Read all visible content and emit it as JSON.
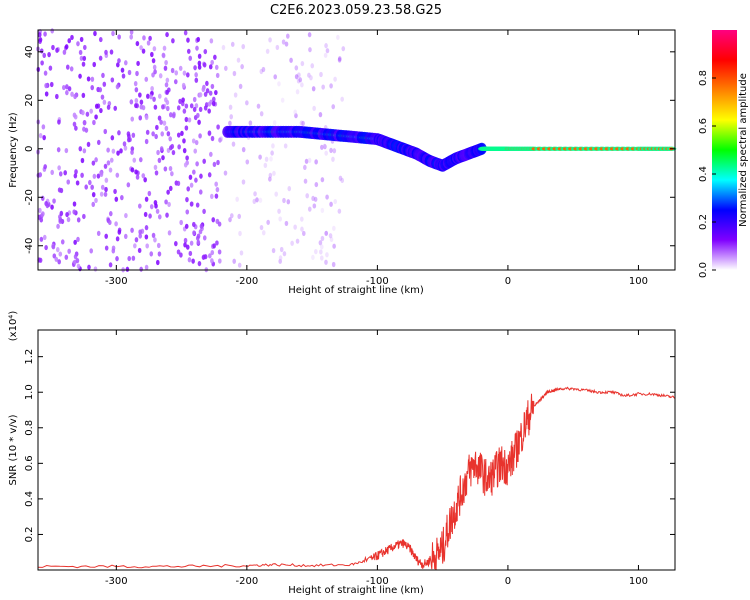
{
  "title": "C2E6.2023.059.23.58.G25",
  "chart_data": [
    {
      "type": "heatmap",
      "xlabel": "Height of straight line (km)",
      "ylabel": "Frequency (Hz)",
      "xlim": [
        -360,
        128
      ],
      "ylim": [
        -50,
        49
      ],
      "xticks": [
        -300,
        -200,
        -100,
        0,
        100
      ],
      "yticks": [
        -40,
        -20,
        0,
        20,
        40
      ],
      "colorbar": {
        "label": "Normalized spectral amplitude",
        "range": [
          0.0,
          1.0
        ],
        "ticks": [
          0.0,
          0.2,
          0.4,
          0.6,
          0.8
        ],
        "colormap": [
          "#ffffff",
          "#8000ff",
          "#0000ff",
          "#00ffff",
          "#00ff00",
          "#ffff00",
          "#ff8000",
          "#ff0000",
          "#ff0080"
        ]
      },
      "features": [
        {
          "x_range": [
            -360,
            -220
          ],
          "freq_range": [
            -50,
            49
          ],
          "amplitude": 0.05
        },
        {
          "x_range": [
            -220,
            -125
          ],
          "freq_range": [
            -50,
            49
          ],
          "amplitude": 0.02
        },
        {
          "x": [
            -215,
            -200,
            -180,
            -160,
            -140,
            -120,
            -100,
            -90,
            -80,
            -70,
            -60,
            -50,
            -40,
            -30,
            -20,
            -10,
            0,
            20,
            60,
            100,
            128
          ],
          "freq": [
            7,
            7,
            7,
            7,
            6,
            5,
            4,
            2,
            0,
            -2,
            -5,
            -7,
            -4,
            -2,
            0,
            0,
            0,
            0,
            0,
            0,
            0
          ],
          "amplitude": 0.3
        }
      ]
    },
    {
      "type": "line",
      "xlabel": "Height of straight line (km)",
      "ylabel": "SNR (10 * v/v)",
      "y_multiplier": "(x10⁴)",
      "xlim": [
        -360,
        128
      ],
      "ylim": [
        0,
        1.35
      ],
      "xticks": [
        -300,
        -200,
        -100,
        0,
        100
      ],
      "yticks": [
        0.2,
        0.4,
        0.6,
        0.8,
        1.0,
        1.2
      ],
      "series": [
        {
          "color": "#e8332d",
          "x": [
            -360,
            -300,
            -250,
            -200,
            -180,
            -150,
            -120,
            -105,
            -100,
            -95,
            -90,
            -85,
            -80,
            -75,
            -70,
            -65,
            -60,
            -55,
            -50,
            -45,
            -40,
            -35,
            -30,
            -25,
            -20,
            -15,
            -10,
            -5,
            0,
            5,
            10,
            15,
            20,
            25,
            30,
            35,
            40,
            50,
            60,
            70,
            80,
            90,
            100,
            110,
            120,
            128
          ],
          "y": [
            0.02,
            0.02,
            0.02,
            0.025,
            0.03,
            0.025,
            0.03,
            0.06,
            0.08,
            0.1,
            0.12,
            0.14,
            0.15,
            0.12,
            0.06,
            0.03,
            0.05,
            0.08,
            0.12,
            0.25,
            0.35,
            0.45,
            0.55,
            0.6,
            0.55,
            0.5,
            0.55,
            0.6,
            0.58,
            0.65,
            0.75,
            0.85,
            0.92,
            0.96,
            1.0,
            1.01,
            1.02,
            1.02,
            1.01,
            1.0,
            1.0,
            0.98,
            0.99,
            0.99,
            0.98,
            0.97
          ]
        }
      ]
    }
  ]
}
